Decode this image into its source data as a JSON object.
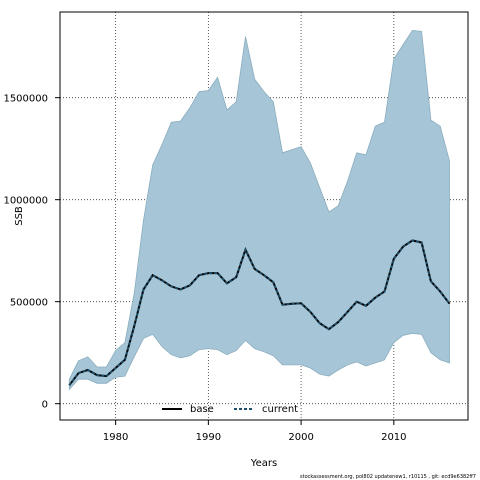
{
  "chart_data": {
    "type": "area",
    "xlabel": "Years",
    "ylabel": "SSB",
    "xlim": [
      1974,
      2018
    ],
    "ylim": [
      -80000,
      1920000
    ],
    "x_ticks": [
      1980,
      1990,
      2000,
      2010
    ],
    "y_ticks": [
      0,
      500000,
      1000000,
      1500000
    ],
    "x_tick_labels": [
      "1980",
      "1990",
      "2000",
      "2010"
    ],
    "y_tick_labels": [
      "0",
      "500000",
      "1000000",
      "1500000"
    ],
    "grid": true,
    "legend_position": "bottom-left",
    "colors": {
      "band_fill": "#a6c5d6",
      "band_edge": "#8aaebf",
      "base_line": "#000000",
      "current_line": "#1f4e66"
    },
    "x": [
      1975,
      1976,
      1977,
      1978,
      1979,
      1980,
      1981,
      1982,
      1983,
      1984,
      1985,
      1986,
      1987,
      1988,
      1989,
      1990,
      1991,
      1992,
      1993,
      1994,
      1995,
      1996,
      1997,
      1998,
      1999,
      2000,
      2001,
      2002,
      2003,
      2004,
      2005,
      2006,
      2007,
      2008,
      2009,
      2010,
      2011,
      2012,
      2013,
      2014,
      2015,
      2016
    ],
    "band_upper": [
      120000,
      210000,
      230000,
      180000,
      180000,
      260000,
      300000,
      540000,
      900000,
      1170000,
      1270000,
      1380000,
      1385000,
      1450000,
      1530000,
      1535000,
      1600000,
      1440000,
      1480000,
      1800000,
      1590000,
      1530000,
      1480000,
      1230000,
      1245000,
      1260000,
      1180000,
      1060000,
      940000,
      970000,
      1090000,
      1230000,
      1220000,
      1360000,
      1380000,
      1690000,
      1760000,
      1830000,
      1825000,
      1390000,
      1360000,
      1190000
    ],
    "band_lower": [
      70000,
      120000,
      120000,
      100000,
      100000,
      130000,
      135000,
      230000,
      320000,
      340000,
      280000,
      240000,
      225000,
      235000,
      265000,
      270000,
      265000,
      240000,
      260000,
      310000,
      270000,
      255000,
      235000,
      190000,
      190000,
      190000,
      175000,
      145000,
      135000,
      165000,
      190000,
      205000,
      185000,
      200000,
      215000,
      300000,
      335000,
      345000,
      340000,
      250000,
      215000,
      200000
    ],
    "series": [
      {
        "name": "base",
        "values": [
          90000,
          150000,
          165000,
          140000,
          135000,
          175000,
          215000,
          380000,
          560000,
          630000,
          605000,
          575000,
          560000,
          580000,
          630000,
          640000,
          640000,
          590000,
          620000,
          755000,
          660000,
          630000,
          595000,
          485000,
          490000,
          492000,
          450000,
          395000,
          365000,
          400000,
          450000,
          500000,
          480000,
          520000,
          550000,
          710000,
          770000,
          800000,
          790000,
          600000,
          550000,
          490000
        ]
      },
      {
        "name": "current",
        "values": [
          90000,
          150000,
          165000,
          140000,
          135000,
          175000,
          215000,
          380000,
          560000,
          630000,
          605000,
          575000,
          560000,
          580000,
          630000,
          640000,
          640000,
          590000,
          620000,
          755000,
          660000,
          630000,
          595000,
          485000,
          490000,
          492000,
          450000,
          395000,
          365000,
          400000,
          450000,
          500000,
          480000,
          520000,
          550000,
          710000,
          770000,
          800000,
          790000,
          600000,
          550000,
          490000
        ]
      }
    ],
    "footer": "stockassessment.org, pol802 updatenew1, r10115 , git: ecd9e6382ff7"
  }
}
